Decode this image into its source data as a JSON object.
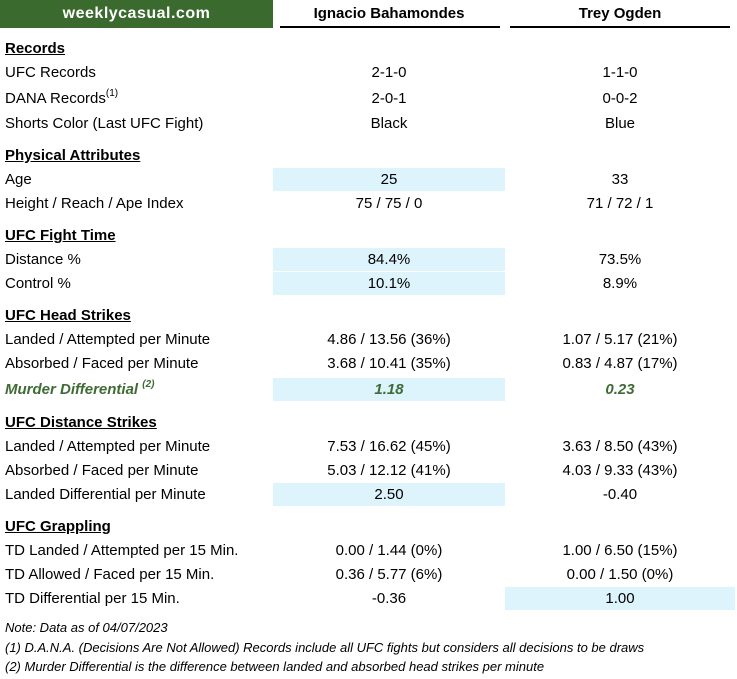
{
  "brand": "weeklycasual.com",
  "fighters": {
    "f1": "Ignacio Bahamondes",
    "f2": "Trey Ogden"
  },
  "sections": {
    "records": "Records",
    "physical": "Physical Attributes",
    "fight_time": "UFC Fight Time",
    "head_strikes": "UFC Head Strikes",
    "distance_strikes": "UFC Distance Strikes",
    "grappling": "UFC Grappling"
  },
  "rows": {
    "ufc_records": {
      "label": "UFC Records",
      "f1": "2-1-0",
      "f2": "1-1-0"
    },
    "dana_records": {
      "label": "DANA Records",
      "note": "(1)",
      "f1": "2-0-1",
      "f2": "0-0-2"
    },
    "shorts": {
      "label": "Shorts Color (Last UFC Fight)",
      "f1": "Black",
      "f2": "Blue"
    },
    "age": {
      "label": "Age",
      "f1": "25",
      "f2": "33"
    },
    "height": {
      "label": "Height / Reach / Ape Index",
      "f1": "75 / 75 / 0",
      "f2": "71 / 72 / 1"
    },
    "distance_pct": {
      "label": "Distance %",
      "f1": "84.4%",
      "f2": "73.5%"
    },
    "control_pct": {
      "label": "Control %",
      "f1": "10.1%",
      "f2": "8.9%"
    },
    "head_landed": {
      "label": "Landed / Attempted per Minute",
      "f1": "4.86 / 13.56 (36%)",
      "f2": "1.07 / 5.17 (21%)"
    },
    "head_absorbed": {
      "label": "Absorbed / Faced per Minute",
      "f1": "3.68 / 10.41 (35%)",
      "f2": "0.83 / 4.87 (17%)"
    },
    "murder_diff": {
      "label": "Murder Differential",
      "note": "(2)",
      "f1": "1.18",
      "f2": "0.23"
    },
    "dist_landed": {
      "label": "Landed / Attempted per Minute",
      "f1": "7.53 / 16.62 (45%)",
      "f2": "3.63 / 8.50 (43%)"
    },
    "dist_absorbed": {
      "label": "Absorbed / Faced per Minute",
      "f1": "5.03 / 12.12 (41%)",
      "f2": "4.03 / 9.33 (43%)"
    },
    "dist_diff": {
      "label": "Landed Differential per Minute",
      "f1": "2.50",
      "f2": "-0.40"
    },
    "td_landed": {
      "label": "TD Landed / Attempted per 15 Min.",
      "f1": "0.00 / 1.44 (0%)",
      "f2": "1.00 / 6.50 (15%)"
    },
    "td_allowed": {
      "label": "TD Allowed / Faced per 15 Min.",
      "f1": "0.36 / 5.77 (6%)",
      "f2": "0.00 / 1.50 (0%)"
    },
    "td_diff": {
      "label": "TD Differential per 15 Min.",
      "f1": "-0.36",
      "f2": "1.00"
    }
  },
  "notes": {
    "date": "Note: Data as of 04/07/2023",
    "n1": "(1) D.A.N.A. (Decisions Are Not Allowed) Records include all UFC fights but considers all decisions to be draws",
    "n2": "(2) Murder Differential is the difference between landed and absorbed head strikes per minute"
  },
  "colors": {
    "brand_bg": "#3b6a2e",
    "highlight": "#ddf4fd",
    "murder_text": "#3f6b35"
  }
}
